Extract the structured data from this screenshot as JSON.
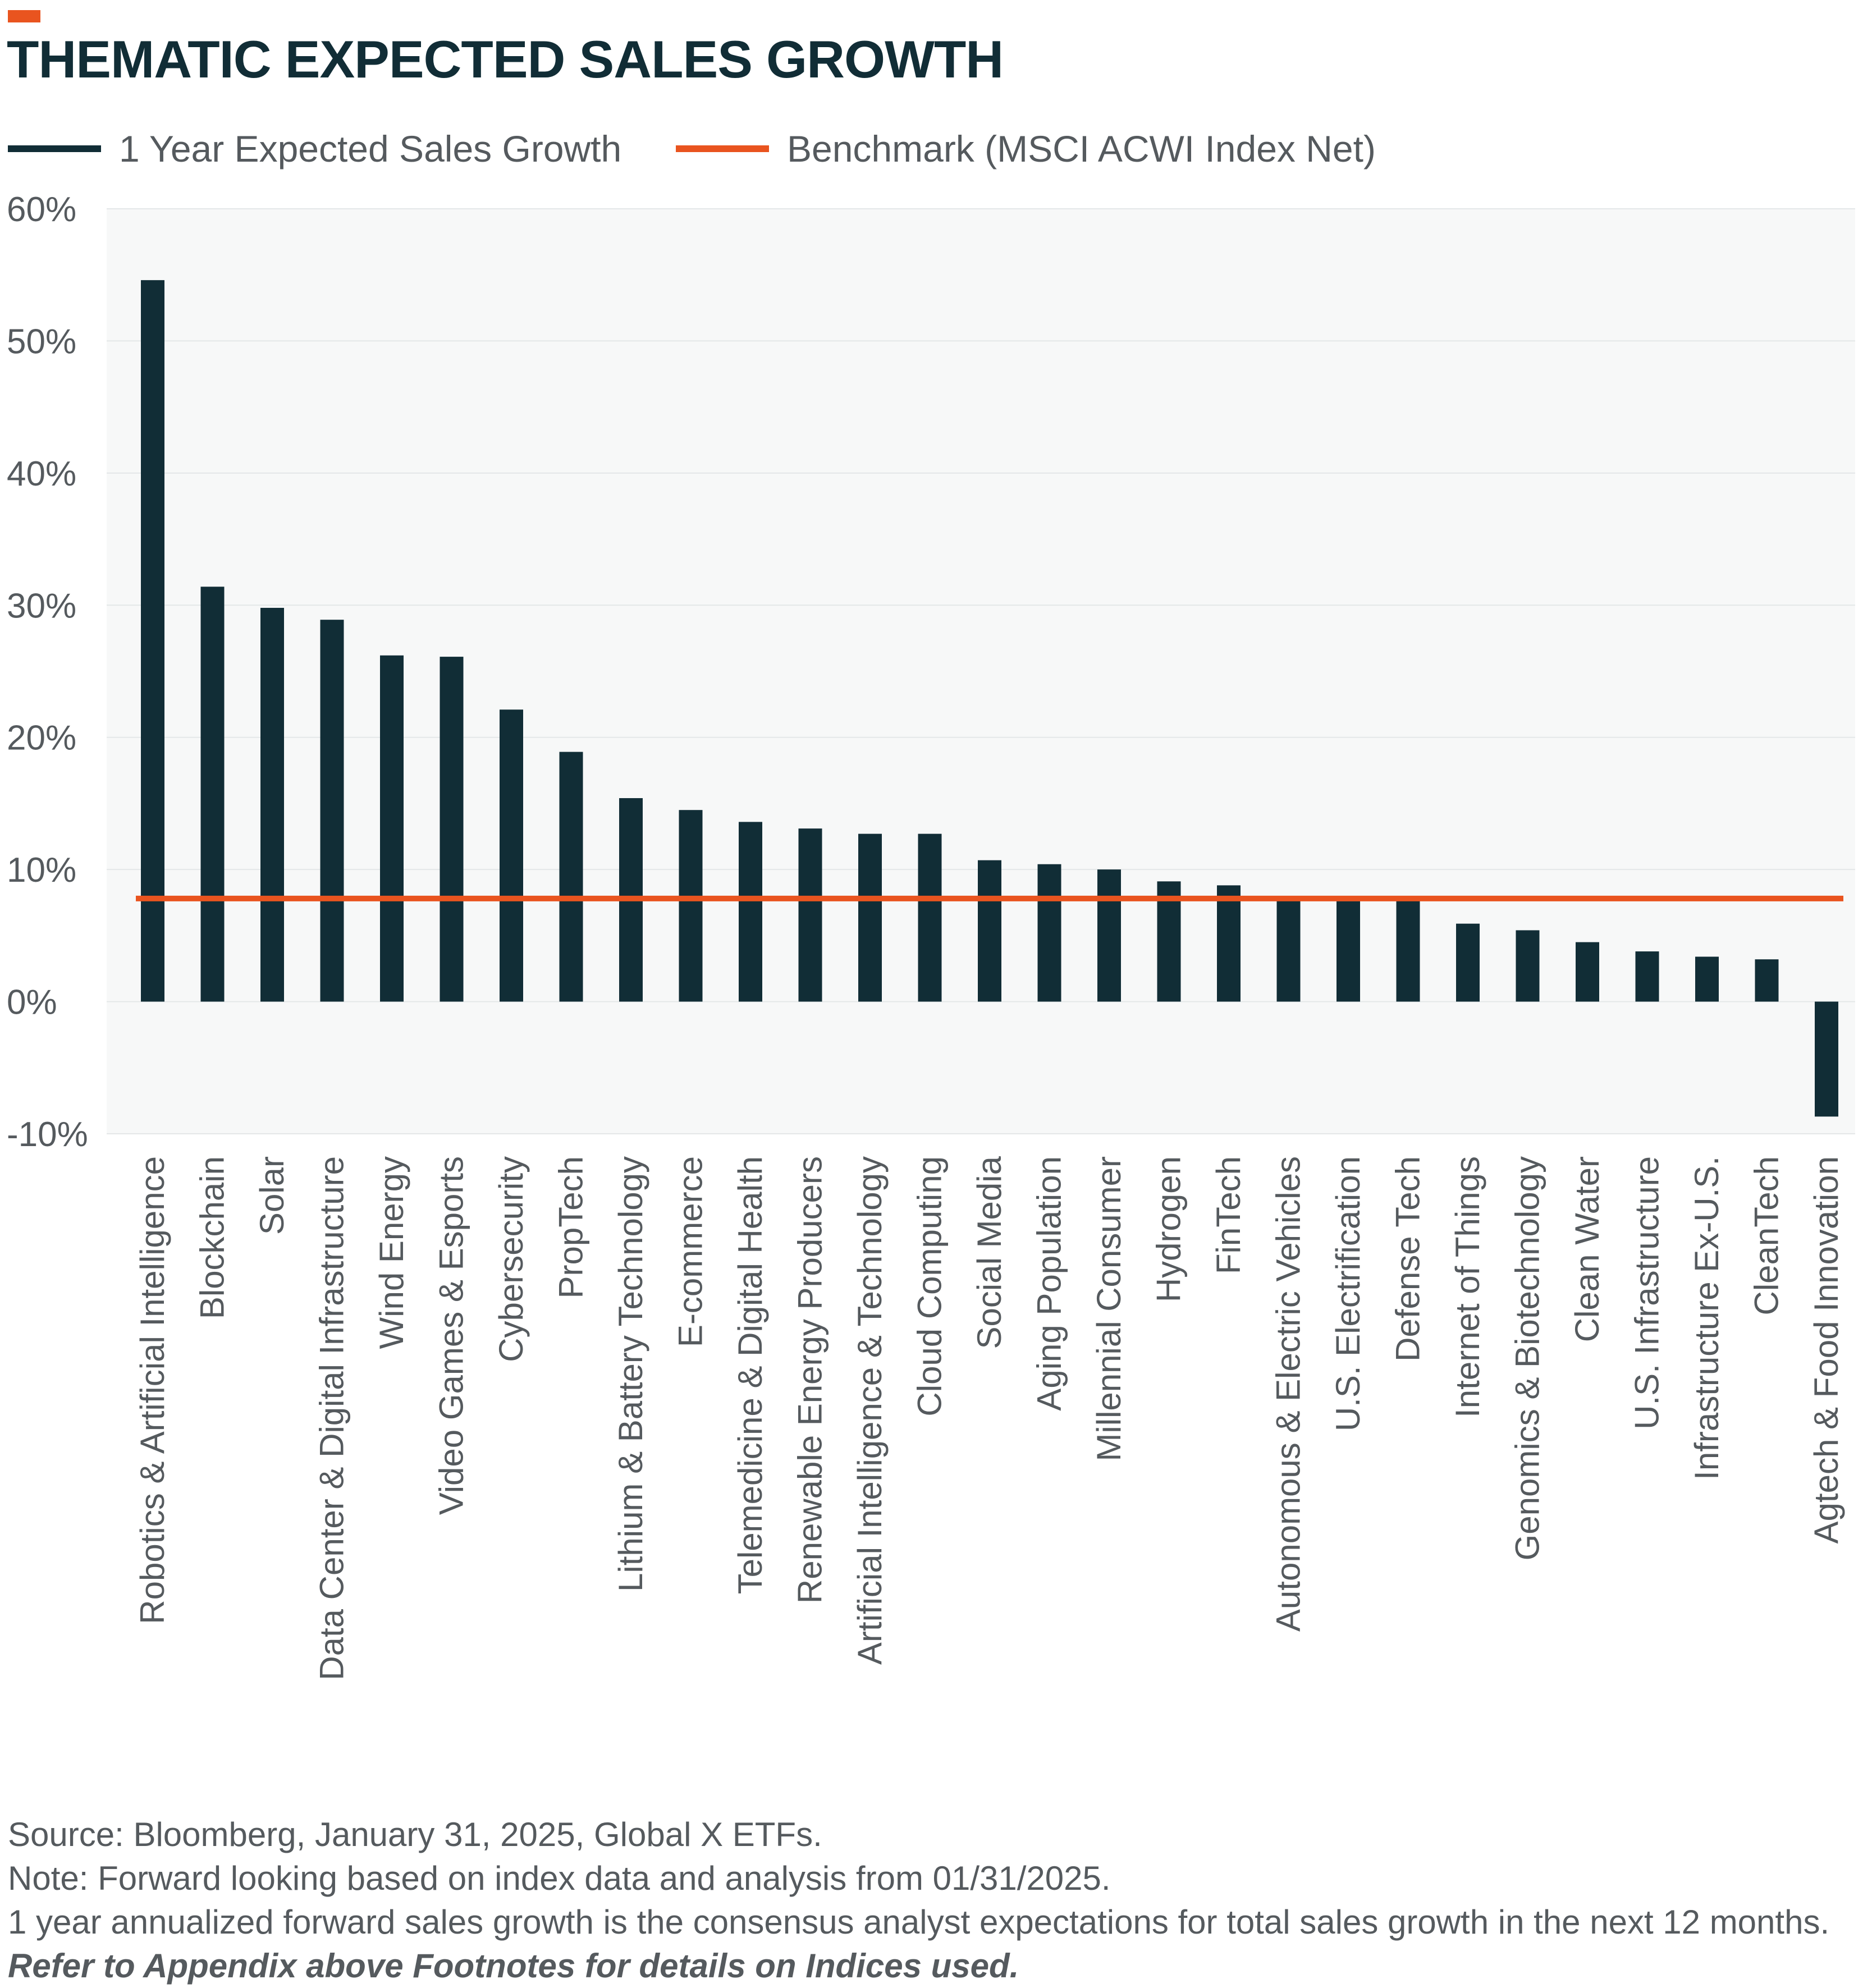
{
  "colors": {
    "accent": "#e9541f",
    "title": "#112d36",
    "bar": "#112d36",
    "benchmark": "#e9541f",
    "plot_background": "#f7f8f8",
    "gridline": "#e4e7e8",
    "axis_text": "#555a5e"
  },
  "title": "THEMATIC EXPECTED SALES GROWTH",
  "legend": [
    {
      "label": "1 Year Expected Sales Growth"
    },
    {
      "label": "Benchmark (MSCI ACWI Index Net)"
    }
  ],
  "chart_data": {
    "type": "bar",
    "title": "THEMATIC EXPECTED SALES GROWTH",
    "xlabel": "",
    "ylabel": "",
    "ylim": [
      -10,
      60
    ],
    "yticks": [
      60,
      50,
      40,
      30,
      20,
      10,
      0,
      -10
    ],
    "ytick_labels": [
      "60%",
      "50%",
      "40%",
      "30%",
      "20%",
      "10%",
      "0%",
      "-10%"
    ],
    "grid": true,
    "legend_position": "top-left",
    "categories": [
      "Robotics & Artificial Intelligence",
      "Blockchain",
      "Solar",
      "Data Center & Digital Infrastructure",
      "Wind Energy",
      "Video Games & Esports",
      "Cybersecurity",
      "PropTech",
      "Lithium & Battery Technology",
      "E-commerce",
      "Telemedicine & Digital Health",
      "Renewable Energy Producers",
      "Artificial Intelligence & Technology",
      "Cloud Computing",
      "Social Media",
      "Aging Population",
      "Millennial Consumer",
      "Hydrogen",
      "FinTech",
      "Autonomous & Electric Vehicles",
      "U.S. Electrification",
      "Defense Tech",
      "Internet of Things",
      "Genomics & Biotechnology",
      "Clean Water",
      "U.S. Infrastructure",
      "Infrastructure Ex-U.S.",
      "CleanTech",
      "Agtech & Food Innovation"
    ],
    "series": [
      {
        "name": "1 Year Expected Sales Growth",
        "type": "bar",
        "values": [
          54.6,
          31.4,
          29.8,
          28.9,
          26.2,
          26.1,
          22.1,
          18.9,
          15.4,
          14.5,
          13.6,
          13.1,
          12.7,
          12.7,
          10.7,
          10.4,
          10.0,
          9.1,
          8.8,
          7.7,
          7.6,
          7.7,
          5.9,
          5.4,
          4.5,
          3.8,
          3.4,
          3.2,
          -8.7
        ]
      },
      {
        "name": "Benchmark (MSCI ACWI Index Net)",
        "type": "line",
        "value": 7.8
      }
    ]
  },
  "footnotes": {
    "source": "Source: Bloomberg, January 31, 2025, Global X ETFs.",
    "note": "Note: Forward looking based on index data and analysis from 01/31/2025.",
    "definition": "1 year annualized forward sales growth is the consensus analyst expectations for total sales growth in the next 12 months.",
    "appendix": "Refer to Appendix above Footnotes for details on Indices used."
  }
}
